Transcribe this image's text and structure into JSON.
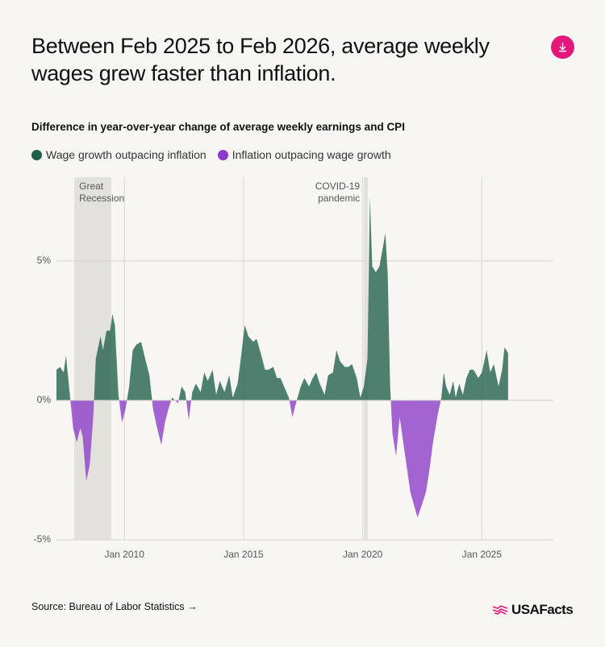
{
  "chart_data": {
    "type": "area",
    "title": "Between Feb 2025 to Feb 2026, average weekly wages grew faster than inflation.",
    "subtitle": "Difference in year-over-year change of average weekly earnings and CPI",
    "source": "Source: Bureau of Labor Statistics →",
    "brand": "USAFacts",
    "positive": {
      "name": "Wage growth outpacing inflation",
      "color": "#1f5e4a"
    },
    "negative": {
      "name": "Inflation outpacing wage growth",
      "color": "#8b3bc9"
    },
    "x": [
      2007.15,
      2007.3,
      2007.45,
      2007.55,
      2007.7,
      2007.85,
      2008.0,
      2008.15,
      2008.25,
      2008.4,
      2008.55,
      2008.7,
      2008.8,
      2009.0,
      2009.1,
      2009.25,
      2009.4,
      2009.5,
      2009.6,
      2009.75,
      2009.9,
      2010.05,
      2010.2,
      2010.35,
      2010.5,
      2010.7,
      2010.9,
      2011.05,
      2011.2,
      2011.35,
      2011.55,
      2011.7,
      2011.85,
      2012.0,
      2012.25,
      2012.4,
      2012.55,
      2012.7,
      2012.85,
      2013.0,
      2013.2,
      2013.35,
      2013.5,
      2013.7,
      2013.85,
      2014.0,
      2014.2,
      2014.4,
      2014.55,
      2014.75,
      2014.9,
      2015.05,
      2015.2,
      2015.4,
      2015.55,
      2015.75,
      2015.9,
      2016.05,
      2016.25,
      2016.4,
      2016.55,
      2016.75,
      2016.9,
      2017.05,
      2017.2,
      2017.4,
      2017.55,
      2017.75,
      2017.9,
      2018.05,
      2018.2,
      2018.4,
      2018.55,
      2018.75,
      2018.9,
      2019.05,
      2019.25,
      2019.4,
      2019.55,
      2019.75,
      2019.9,
      2020.05,
      2020.2,
      2020.3,
      2020.4,
      2020.55,
      2020.7,
      2020.85,
      2020.95,
      2021.05,
      2021.15,
      2021.25,
      2021.4,
      2021.55,
      2021.7,
      2021.85,
      2022.0,
      2022.2,
      2022.3,
      2022.5,
      2022.65,
      2022.8,
      2022.95,
      2023.15,
      2023.3,
      2023.4,
      2023.5,
      2023.65,
      2023.8,
      2023.9,
      2024.05,
      2024.2,
      2024.35,
      2024.5,
      2024.65,
      2024.85,
      2025.0,
      2025.2,
      2025.35,
      2025.5,
      2025.7,
      2025.85,
      2025.95,
      2026.1
    ],
    "values": [
      1.1,
      1.2,
      1.0,
      1.6,
      0.3,
      -1.0,
      -1.5,
      -1.0,
      -1.3,
      -2.9,
      -2.3,
      -0.5,
      1.5,
      2.3,
      1.8,
      2.5,
      2.5,
      3.1,
      2.7,
      0.2,
      -0.8,
      -0.3,
      0.5,
      1.8,
      2.0,
      2.1,
      1.4,
      0.9,
      -0.3,
      -0.9,
      -1.6,
      -0.8,
      -0.3,
      0.1,
      -0.1,
      0.5,
      0.3,
      -0.7,
      0.3,
      0.6,
      0.3,
      1.0,
      0.7,
      1.1,
      0.2,
      0.7,
      0.3,
      0.9,
      0.1,
      0.6,
      1.6,
      2.7,
      2.3,
      2.1,
      2.2,
      1.6,
      1.1,
      1.1,
      1.2,
      0.8,
      0.8,
      0.4,
      0.1,
      -0.6,
      -0.1,
      0.5,
      0.8,
      0.5,
      0.8,
      1.0,
      0.6,
      0.2,
      0.9,
      1.0,
      1.8,
      1.4,
      1.2,
      1.2,
      1.3,
      0.8,
      0.1,
      0.5,
      1.5,
      7.3,
      4.8,
      4.6,
      4.8,
      5.5,
      6.0,
      4.5,
      0.5,
      -1.2,
      -2.0,
      -0.6,
      -1.5,
      -2.4,
      -3.3,
      -3.9,
      -4.2,
      -3.7,
      -3.3,
      -2.5,
      -1.5,
      -0.5,
      0.1,
      1.0,
      0.5,
      0.2,
      0.7,
      0.1,
      0.6,
      0.2,
      0.8,
      1.1,
      1.1,
      0.8,
      1.0,
      1.8,
      1.0,
      1.3,
      0.5,
      1.1,
      1.9,
      1.7
    ],
    "xlim": [
      2007.15,
      2028.0
    ],
    "xticks": [
      {
        "value": 2010,
        "label": "Jan 2010"
      },
      {
        "value": 2015,
        "label": "Jan 2015"
      },
      {
        "value": 2020,
        "label": "Jan 2020"
      },
      {
        "value": 2025,
        "label": "Jan 2025"
      }
    ],
    "ylim": [
      -5,
      8
    ],
    "yticks": [
      {
        "value": 5,
        "label": "5%"
      },
      {
        "value": 0,
        "label": "0%"
      },
      {
        "value": -5,
        "label": "-5%"
      }
    ],
    "grid": true,
    "shaded_periods": [
      {
        "label": [
          "Great",
          "Recession"
        ],
        "start": 2007.9,
        "end": 2009.45,
        "label_align": "start"
      },
      {
        "label": [
          "COVID-19",
          "pandemic"
        ],
        "start": 2020.05,
        "end": 2020.22,
        "label_align": "end"
      }
    ]
  }
}
